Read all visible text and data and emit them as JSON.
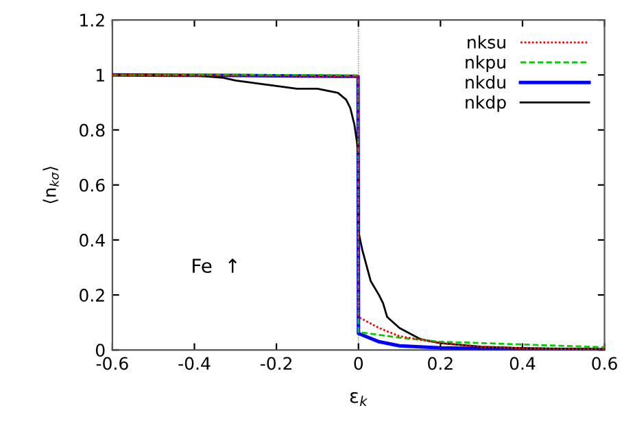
{
  "chart_data": {
    "type": "line",
    "xlabel": "ε$_{k}$",
    "ylabel": "⟨n$_{kσ}$⟩",
    "xlim": [
      -0.6,
      0.6
    ],
    "xticks": [
      -0.6,
      -0.4,
      -0.2,
      0,
      0.2,
      0.4,
      0.6
    ],
    "ylim": [
      0,
      1.2
    ],
    "yticks": [
      0,
      0.2,
      0.4,
      0.6,
      0.8,
      1,
      1.2
    ],
    "grid": false,
    "legend": "top right",
    "marker": "none",
    "ref_lines": [
      {
        "axis": "x",
        "value": 0,
        "line_style": "dotted",
        "color": "#999999"
      }
    ],
    "annotations": [
      "Fe  ↑"
    ],
    "series": [
      {
        "name": "nksu",
        "color": "#ff0000",
        "line_style": "dotted",
        "x": [
          -0.6,
          -0.3,
          -0.1,
          -0.001,
          0,
          0.05,
          0.1,
          0.2,
          0.3,
          0.4,
          0.6
        ],
        "values": [
          1.0,
          0.998,
          0.995,
          0.995,
          0.12,
          0.08,
          0.05,
          0.025,
          0.012,
          0.006,
          0.003
        ]
      },
      {
        "name": "nkpu",
        "color": "#00cc00",
        "line_style": "dashed",
        "x": [
          -0.6,
          -0.1,
          -0.001,
          0,
          0.1,
          0.2,
          0.3,
          0.4,
          0.5,
          0.6
        ],
        "values": [
          1.0,
          1.0,
          0.998,
          0.065,
          0.045,
          0.03,
          0.025,
          0.02,
          0.015,
          0.01
        ]
      },
      {
        "name": "nkdu",
        "color": "#0000ff",
        "line_style": "solid",
        "x": [
          -0.6,
          -0.3,
          -0.05,
          -0.001,
          0,
          0.05,
          0.1,
          0.2,
          0.4,
          0.6
        ],
        "values": [
          1.0,
          0.998,
          0.995,
          0.995,
          0.06,
          0.03,
          0.015,
          0.008,
          0.003,
          0.001
        ]
      },
      {
        "name": "nkdp",
        "color": "#000000",
        "line_style": "solid",
        "x": [
          -0.6,
          -0.4,
          -0.33,
          -0.3,
          -0.2,
          -0.15,
          -0.1,
          -0.05,
          -0.03,
          -0.02,
          -0.01,
          -0.003,
          0,
          0,
          0.01,
          0.03,
          0.05,
          0.06,
          0.07,
          0.1,
          0.15,
          0.2,
          0.3,
          0.4,
          0.6
        ],
        "values": [
          1.0,
          0.998,
          0.99,
          0.98,
          0.96,
          0.95,
          0.95,
          0.935,
          0.91,
          0.88,
          0.82,
          0.75,
          0.69,
          0.43,
          0.36,
          0.25,
          0.2,
          0.17,
          0.12,
          0.08,
          0.04,
          0.025,
          0.012,
          0.007,
          0.003
        ]
      }
    ]
  }
}
